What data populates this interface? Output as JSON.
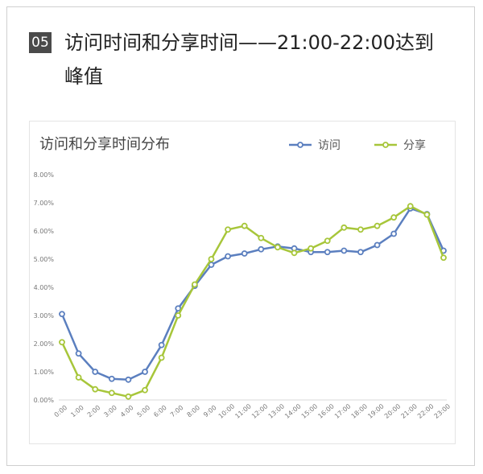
{
  "header": {
    "badge": "05",
    "headline": "访问时间和分享时间——21:00-22:00达到峰值"
  },
  "chart_data": {
    "type": "line",
    "title": "访问和分享时间分布",
    "categories": [
      "0:00",
      "1:00",
      "2:00",
      "3:00",
      "4:00",
      "5:00",
      "6:00",
      "7:00",
      "8:00",
      "9:00",
      "10:00",
      "11:00",
      "12:00",
      "13:00",
      "14:00",
      "15:00",
      "16:00",
      "17:00",
      "18:00",
      "19:00",
      "20:00",
      "21:00",
      "22:00",
      "23:00"
    ],
    "yticks": [
      "0.00%",
      "1.00%",
      "2.00%",
      "3.00%",
      "4.00%",
      "5.00%",
      "6.00%",
      "7.00%",
      "8.00%"
    ],
    "ylim": [
      0,
      8
    ],
    "legend_position": "top-right",
    "grid": false,
    "series": [
      {
        "name": "访问",
        "color": "#5b7fbf",
        "values": [
          3.05,
          1.65,
          1.0,
          0.75,
          0.72,
          1.0,
          1.95,
          3.25,
          4.05,
          4.8,
          5.1,
          5.2,
          5.35,
          5.45,
          5.38,
          5.25,
          5.25,
          5.3,
          5.25,
          5.5,
          5.9,
          6.8,
          6.6,
          5.3
        ]
      },
      {
        "name": "分享",
        "color": "#a7c63a",
        "values": [
          2.05,
          0.8,
          0.38,
          0.25,
          0.12,
          0.35,
          1.5,
          3.0,
          4.1,
          5.0,
          6.05,
          6.18,
          5.75,
          5.42,
          5.22,
          5.38,
          5.65,
          6.12,
          6.05,
          6.18,
          6.48,
          6.88,
          6.58,
          5.05
        ]
      }
    ]
  }
}
